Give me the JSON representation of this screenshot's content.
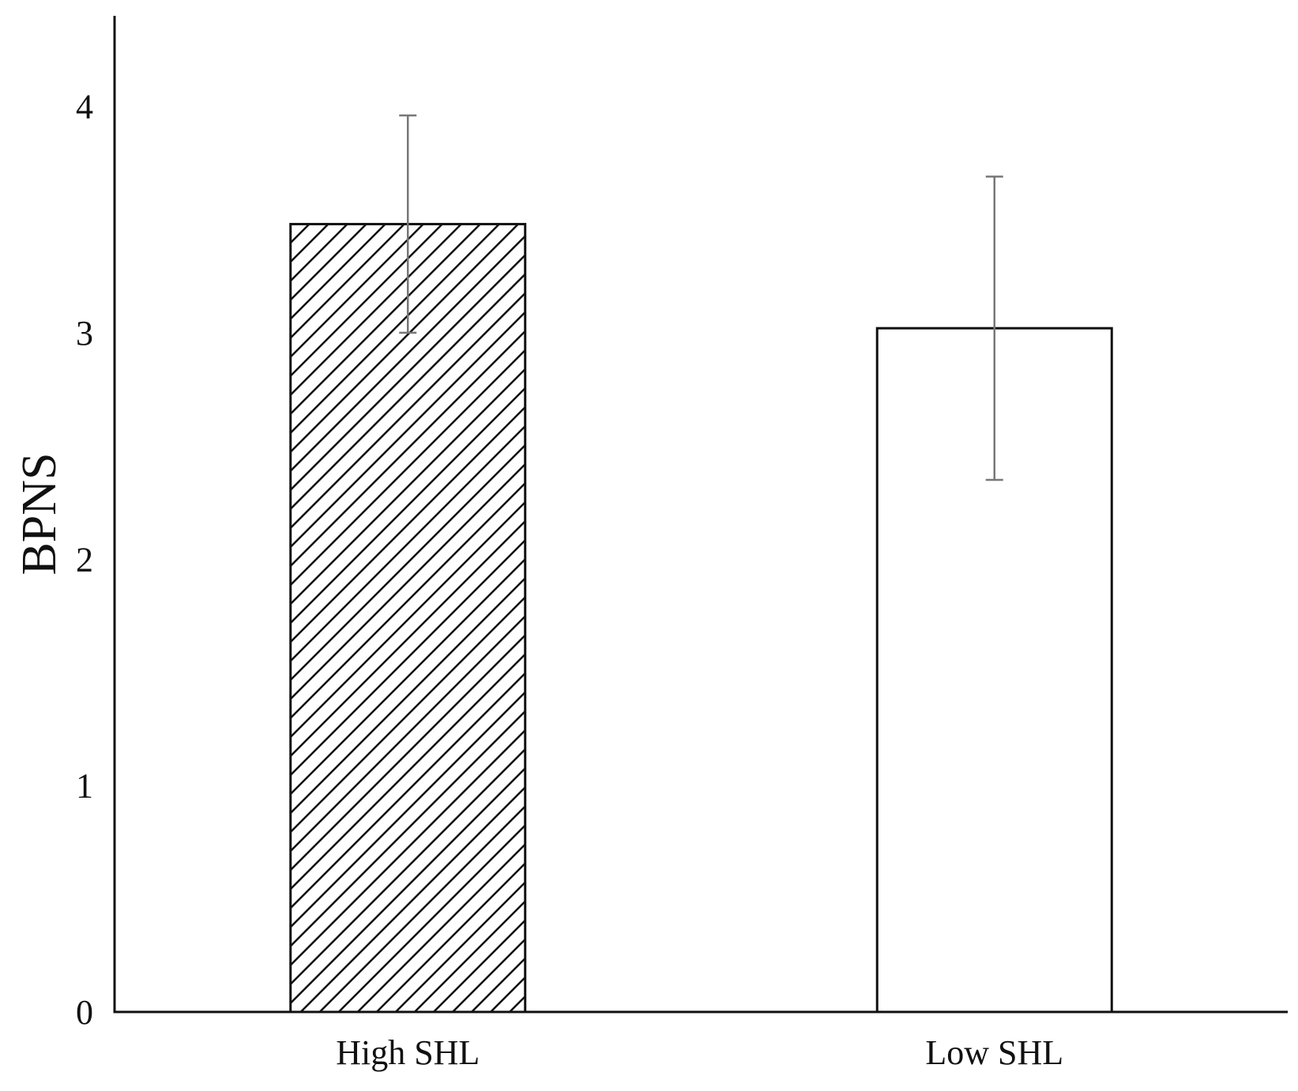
{
  "chart_data": {
    "type": "bar",
    "title": "",
    "xlabel": "",
    "ylabel": "BPNS",
    "ylim": [
      0,
      4.4
    ],
    "yticks": [
      0,
      1,
      2,
      3,
      4
    ],
    "grid": false,
    "categories": [
      "High SHL",
      "Low SHL"
    ],
    "values": [
      3.48,
      3.02
    ],
    "error": [
      0.48,
      0.67
    ],
    "fills": [
      "hatched",
      "white"
    ],
    "colors": {
      "stroke": "#111111",
      "error_bar": "#777777",
      "background": "#ffffff"
    }
  }
}
